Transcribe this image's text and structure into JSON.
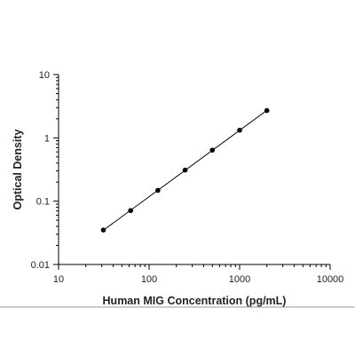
{
  "chart_data": {
    "type": "scatter",
    "title": "",
    "xlabel": "Human MIG Concentration (pg/mL)",
    "ylabel": "Optical Density",
    "xscale": "log",
    "yscale": "log",
    "xlim": [
      10,
      10000
    ],
    "ylim": [
      0.01,
      10
    ],
    "grid": false,
    "legend": "none",
    "x_ticks": [
      10,
      100,
      1000,
      10000
    ],
    "x_tick_labels": [
      "10",
      "100",
      "1000",
      "10000"
    ],
    "y_ticks": [
      0.01,
      0.1,
      1,
      10
    ],
    "y_tick_labels": [
      "0.01",
      "0.1",
      "1",
      "10"
    ],
    "series": [
      {
        "x": [
          31.25,
          62.5,
          125,
          250,
          500,
          1000,
          2000
        ],
        "y": [
          0.035,
          0.071,
          0.148,
          0.31,
          0.64,
          1.32,
          2.7
        ],
        "marker": "circle",
        "line": "straight fit",
        "color": "#000000"
      }
    ]
  }
}
